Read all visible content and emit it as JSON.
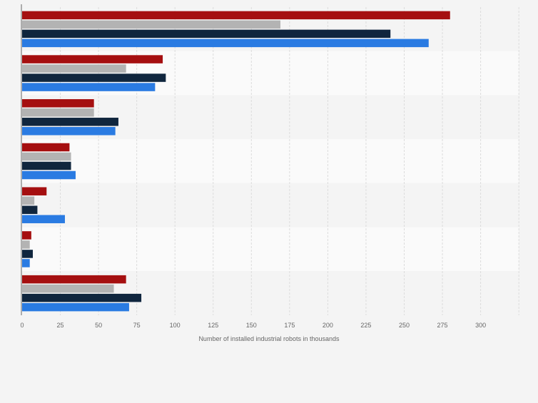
{
  "chart_data": {
    "type": "bar",
    "orientation": "horizontal",
    "categories": [
      "",
      "",
      "",
      "",
      "",
      "",
      ""
    ],
    "series": [
      {
        "color": "#a50f10",
        "values": [
          280,
          92,
          47,
          31,
          16,
          6,
          68
        ]
      },
      {
        "color": "#b3b3b3",
        "values": [
          169,
          68,
          47,
          32,
          8,
          5,
          60
        ]
      },
      {
        "color": "#10263e",
        "values": [
          241,
          94,
          63,
          32,
          10,
          7,
          78
        ]
      },
      {
        "color": "#2a7be2",
        "values": [
          266,
          87,
          61,
          35,
          28,
          5,
          70
        ]
      }
    ],
    "xlabel": "Number of installed industrial robots in thousands",
    "xlim": [
      0,
      325
    ],
    "xticks": [
      "0",
      "25",
      "50",
      "75",
      "100",
      "125",
      "150",
      "175",
      "200",
      "225",
      "250",
      "275",
      "300"
    ],
    "grid": true
  }
}
